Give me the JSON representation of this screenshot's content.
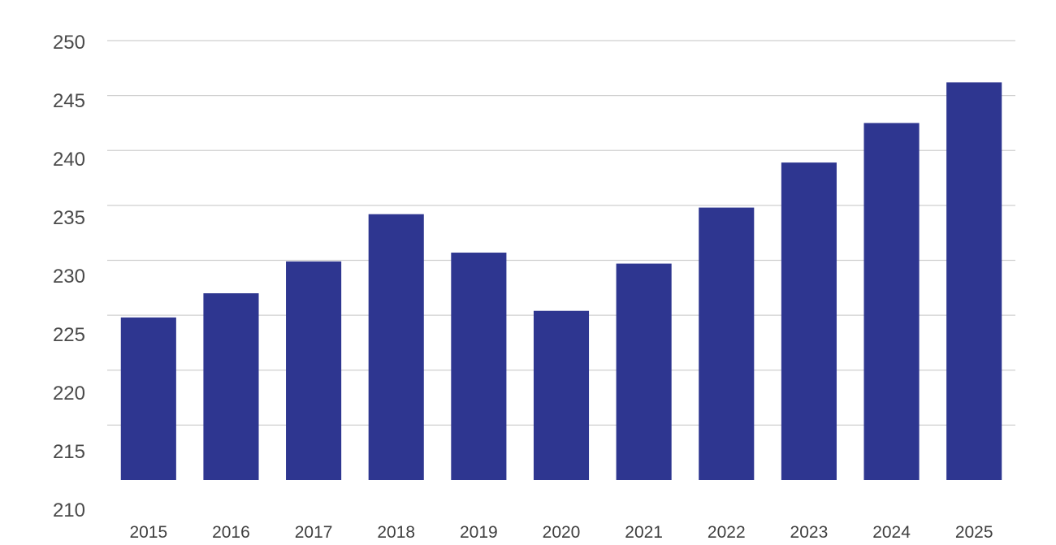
{
  "chart_data": {
    "type": "bar",
    "title": "",
    "xlabel": "",
    "ylabel": "",
    "categories": [
      "2015",
      "2016",
      "2017",
      "2018",
      "2019",
      "2020",
      "2021",
      "2022",
      "2023",
      "2024",
      "2025"
    ],
    "values": [
      224.8,
      227.0,
      229.9,
      234.2,
      230.7,
      225.4,
      229.7,
      234.8,
      238.9,
      242.5,
      246.2
    ],
    "ylim": [
      210,
      250
    ],
    "y_ticks": [
      "250",
      "245",
      "240",
      "235",
      "230",
      "225",
      "220",
      "215",
      "210"
    ],
    "grid": true,
    "legend": "none",
    "colors": {
      "bar": "#2e3690",
      "grid": "#cfcfcf",
      "tick_text": "#4a4a4a"
    }
  }
}
